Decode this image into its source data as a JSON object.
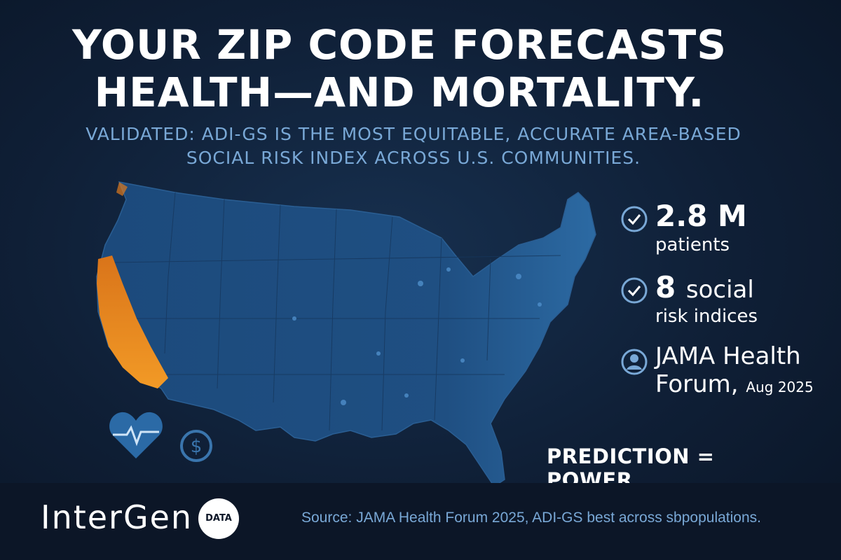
{
  "headline": {
    "line1": "YOUR ZIP CODE FORECASTS",
    "line2": "HEALTH—AND MORTALITY."
  },
  "subheadline": {
    "line1": "VALIDATED: ADI-GS IS THE MOST EQUITABLE, ACCURATE AREA-BASED",
    "line2": "SOCIAL RISK INDEX ACROSS U.S. COMMUNITIES."
  },
  "stats": [
    {
      "icon": "check-circle-icon",
      "value": "2.8 M",
      "label": "patients"
    },
    {
      "icon": "check-circle-icon",
      "value": "8",
      "value_suffix": "social",
      "label": "risk indices"
    },
    {
      "icon": "person-circle-icon",
      "value": "JAMA Health",
      "label": "Forum,",
      "date": "Aug 2025"
    }
  ],
  "tagline": "PREDICTION = POWER",
  "footer": {
    "brand": "InterGen",
    "brand_badge": "DATA",
    "source": "Source: JAMA Health Forum 2025, ADI-GS best across sbpopulations."
  },
  "icons": [
    "heart-pulse-icon",
    "dollar-circle-icon"
  ],
  "colors": {
    "background": "#0f1f36",
    "accent_blue": "#79a8d6",
    "map_blue": "#1f4f82",
    "hotspot_orange": "#f08a1c"
  }
}
